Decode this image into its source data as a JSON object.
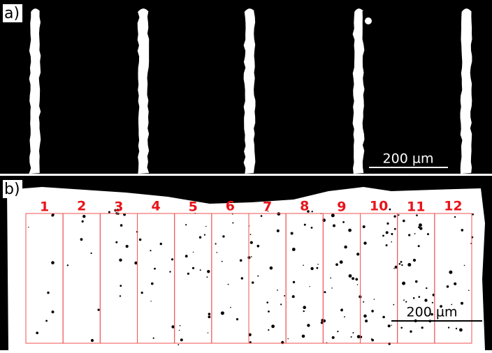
{
  "panels": [
    {
      "label": "a)",
      "scale_bar": "200 µm"
    },
    {
      "label": "b)",
      "scale_bar": "200 µm",
      "regions": [
        "1",
        "2",
        "3",
        "4",
        "5",
        "6",
        "7",
        "8",
        "9",
        "10",
        "11",
        "12"
      ]
    }
  ]
}
